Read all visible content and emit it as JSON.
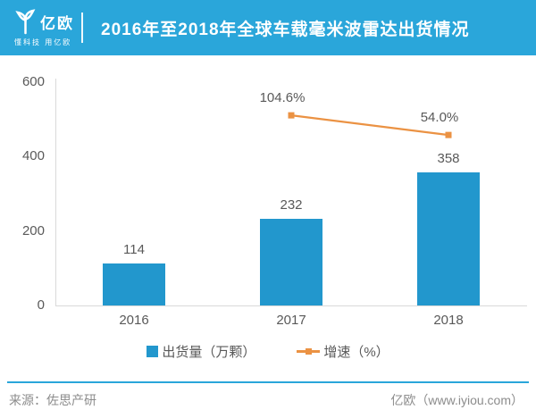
{
  "header": {
    "logo": {
      "brand": "亿欧",
      "tagline": "懂科技 用亿欧"
    },
    "title": "2016年至2018年全球车载毫米波雷达出货情况"
  },
  "chart_data": {
    "type": "bar",
    "title": "2016年至2018年全球车载毫米波雷达出货情况",
    "categories": [
      "2016",
      "2017",
      "2018"
    ],
    "series": [
      {
        "name": "出货量（万颗）",
        "type": "bar",
        "axis": "left",
        "color": "#2297CD",
        "values": [
          114,
          232,
          358
        ],
        "value_labels": [
          "114",
          "232",
          "358"
        ]
      },
      {
        "name": "增速（%）",
        "type": "line",
        "axis": "right",
        "color": "#EB9243",
        "values": [
          null,
          104.6,
          54.0
        ],
        "value_labels": [
          "",
          "104.6%",
          "54.0%"
        ]
      }
    ],
    "xlabel": "",
    "ylabel": "",
    "y_axis": {
      "min": 0,
      "max": 600,
      "ticks": [
        0,
        200,
        400,
        600
      ]
    },
    "y2_axis": {
      "min": -385,
      "max": 190,
      "visible": false
    },
    "grid": false,
    "legend_position": "bottom"
  },
  "legend": [
    {
      "label": "出货量（万颗）",
      "marker": "square",
      "color": "#2297CD"
    },
    {
      "label": "增速（%）",
      "marker": "line-dot",
      "color": "#EB9243"
    }
  ],
  "footer": {
    "source": "来源：佐思产研",
    "brand": "亿欧（www.iyiou.com）"
  },
  "colors": {
    "header_bg": "#2AA6DA",
    "bar_blue": "#2297CD",
    "line_orange": "#EB9243",
    "axis_line": "#D9D9D9",
    "label_gray": "#595959",
    "footer_text": "#8C8C8C",
    "divider_blue": "#2AA6DA",
    "background": "#FFFFFF"
  }
}
